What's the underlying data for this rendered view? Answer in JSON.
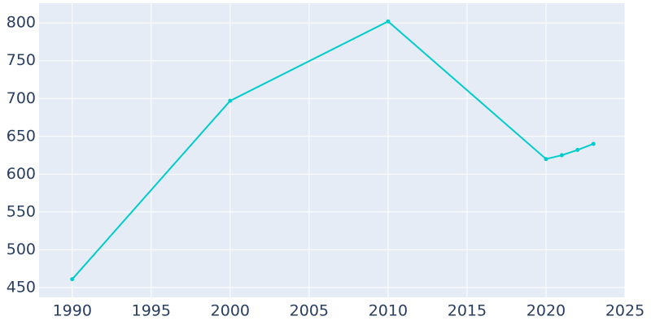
{
  "chart_data": {
    "type": "line",
    "x": [
      1990,
      2000,
      2010,
      2020,
      2021,
      2022,
      2023
    ],
    "series": [
      {
        "color": "#00cccc",
        "values": [
          461,
          697,
          802,
          620,
          625,
          632,
          640
        ]
      }
    ],
    "xlim": [
      1987.9,
      2025
    ],
    "xticks": [
      1990,
      1995,
      2000,
      2005,
      2010,
      2015,
      2020,
      2025
    ],
    "ylim": [
      437,
      826
    ],
    "yticks": [
      450,
      500,
      550,
      600,
      650,
      700,
      750,
      800
    ],
    "grid": true
  }
}
